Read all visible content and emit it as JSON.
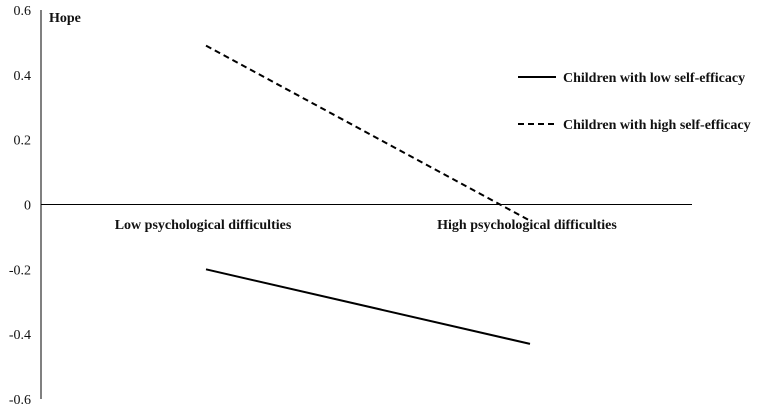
{
  "chart_data": {
    "type": "line",
    "ylabel": "Hope",
    "categories": [
      "Low psychological difficulties",
      "High psychological difficulties"
    ],
    "series": [
      {
        "name": "Children with low self-efficacy",
        "values": [
          -0.2,
          -0.43
        ],
        "style": "solid"
      },
      {
        "name": "Children with high self-efficacy",
        "values": [
          0.49,
          -0.05
        ],
        "style": "dashed"
      }
    ],
    "ylim": [
      -0.6,
      0.6
    ],
    "yticks": [
      "0.6",
      "0.4",
      "0.2",
      "0",
      "-0.2",
      "-0.4",
      "-0.6"
    ],
    "grid": false,
    "legend": "right"
  }
}
